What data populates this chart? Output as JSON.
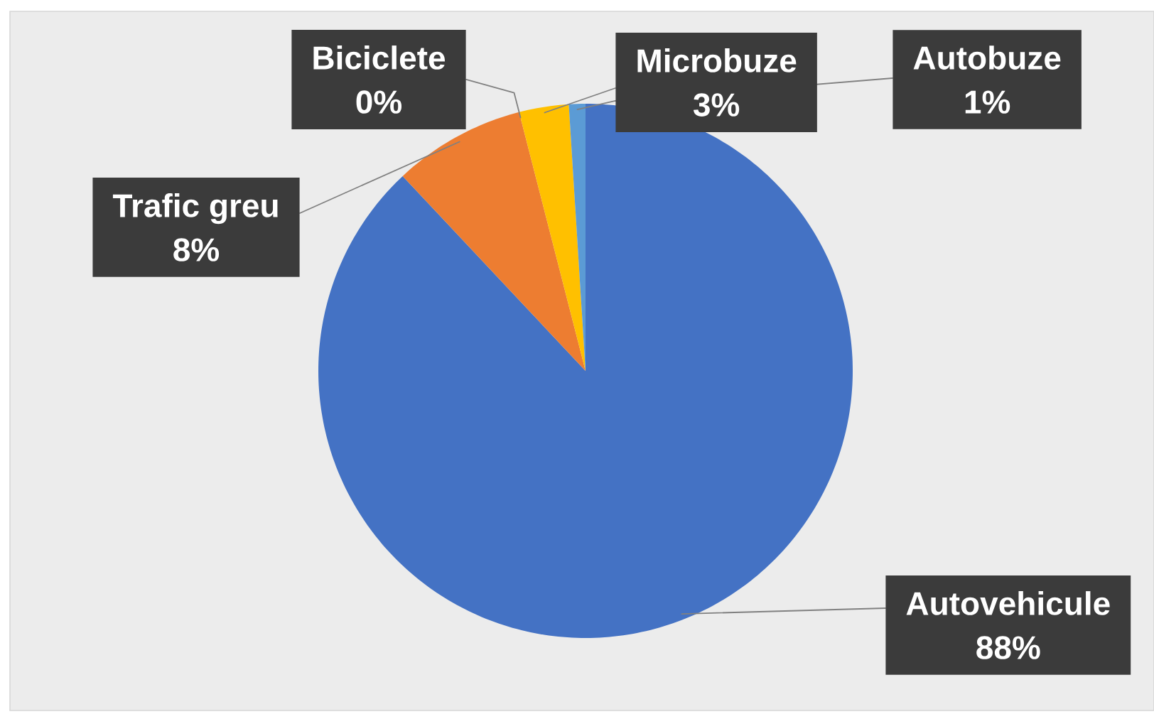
{
  "chart_data": {
    "type": "pie",
    "categories": [
      "Autovehicule",
      "Trafic greu",
      "Biciclete",
      "Microbuze",
      "Autobuze"
    ],
    "values": [
      88,
      8,
      0,
      3,
      1
    ],
    "colors": [
      "#4472c4",
      "#ed7d31",
      "#a5a5a5",
      "#ffc000",
      "#5b9bd5"
    ],
    "value_labels": [
      "88%",
      "8%",
      "0%",
      "3%",
      "1%"
    ]
  }
}
